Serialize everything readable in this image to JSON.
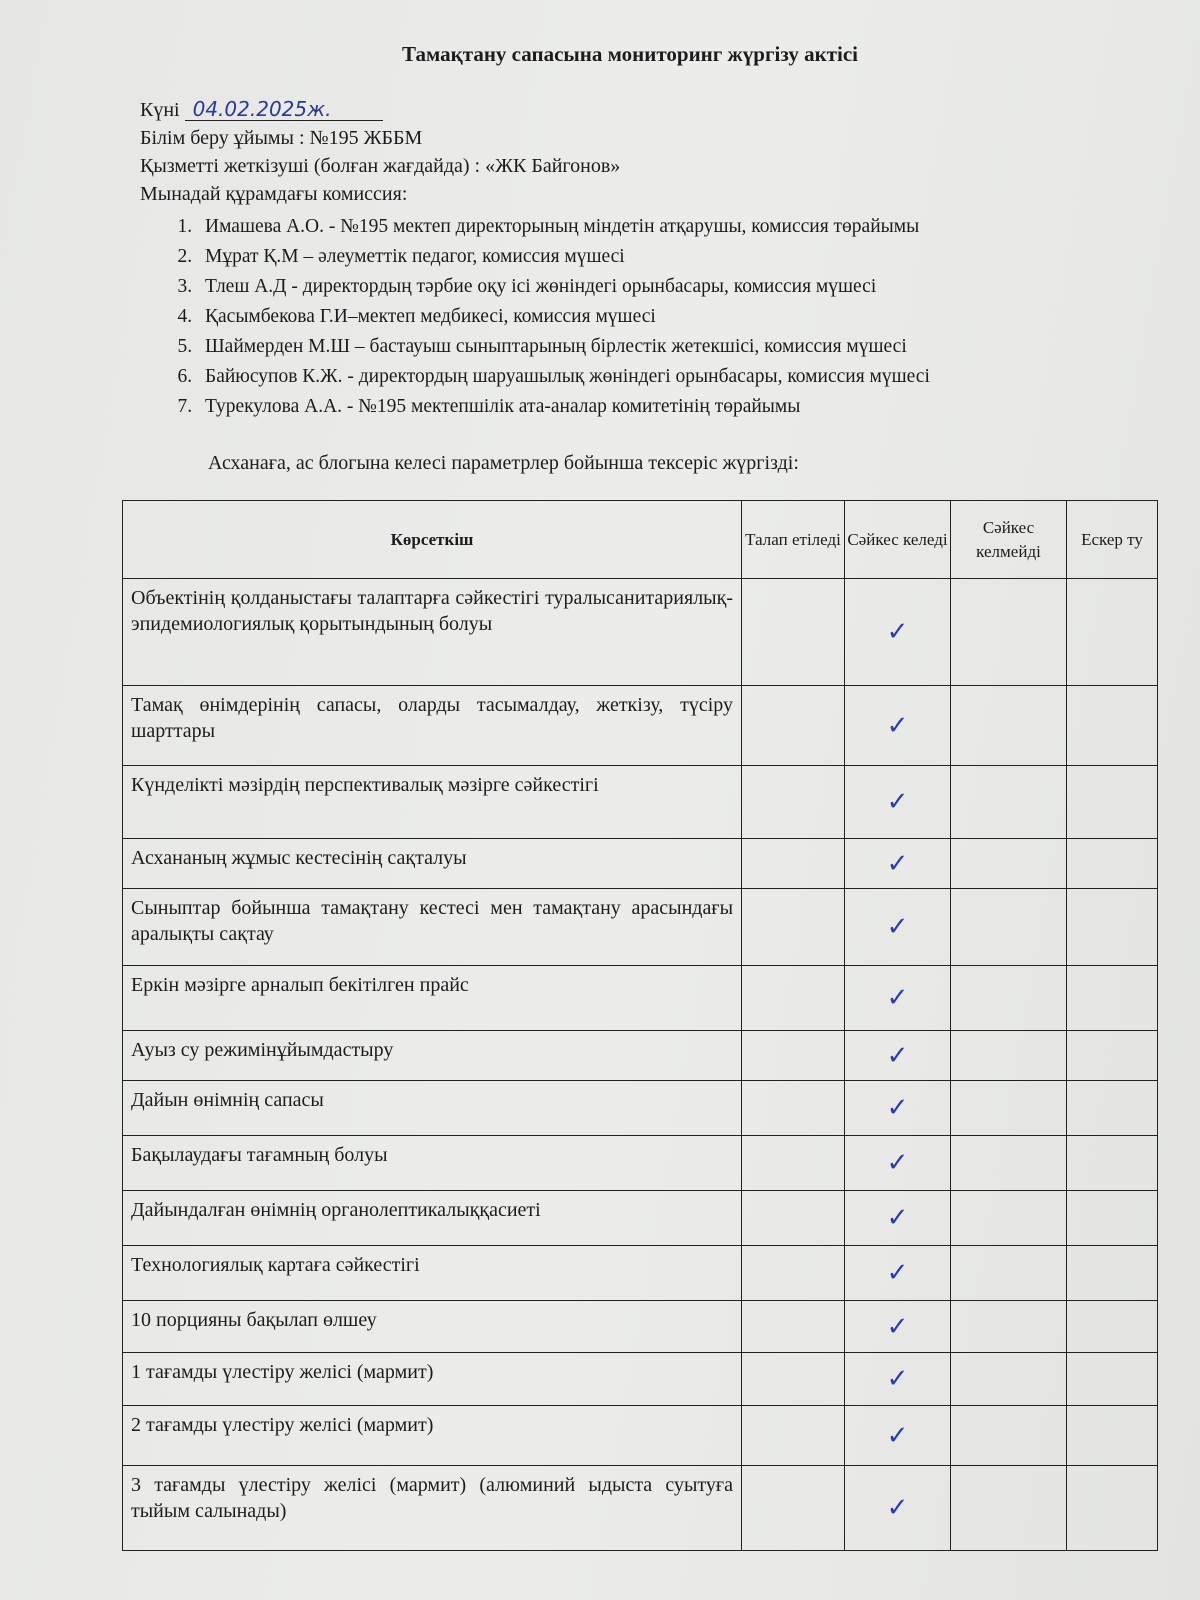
{
  "title": "Тамақтану сапасына мониторинг жүргізу актісі",
  "date_label": "Күні",
  "date_value": "04.02.2025ж.",
  "organization": "Білім беру ұйымы : №195 ЖББМ",
  "supplier": "Қызметті жеткізуші (болған жағдайда) : «ЖК Байгонов»",
  "commission_label": "Мынадай құрамдағы комиссия:",
  "commission": [
    "Имашева А.О. - №195 мектеп директорының міндетін атқарушы, комиссия төрайымы",
    "Мұрат Қ.М – әлеуметтік педагог, комиссия мүшесі",
    "Тлеш А.Д - директордың тәрбие оқу ісі жөніндегі орынбасары, комиссия мүшесі",
    "Қасымбекова Г.И–мектеп  медбикесі,  комиссия мүшесі",
    "Шаймерден М.Ш – бастауыш сыныптарының бірлестік жетекшісі, комиссия мүшесі",
    "Байюсупов К.Ж. - директордың шаруашылық жөніндегі орынбасары, комиссия мүшесі",
    "Турекулова А.А. - №195 мектепшілік ата-аналар комитетінің төрайымы"
  ],
  "intro": "Асханаға, ас блогына келесі параметрлер бойынша тексеріс жүргізді:",
  "table": {
    "headers": [
      "Көрсеткіш",
      "Талап етіледі",
      "Сәйкес келеді",
      "Сәйкес келмейді",
      "Ескер ту"
    ],
    "check_mark": "✓",
    "rows": [
      {
        "indicator": "Объектінің қолданыстағы талаптарға сәйкестігі туралысанитариялық-эпидемиологиялық қорытындының болуы",
        "complies": true
      },
      {
        "indicator": "Тамақ өнімдерінің сапасы, оларды тасымалдау, жеткізу, түсіру шарттары",
        "complies": true
      },
      {
        "indicator": "Күнделікті мәзірдің перспективалық мәзірге сәйкестігі",
        "complies": true
      },
      {
        "indicator": "Асхананың жұмыс кестесінің сақталуы",
        "complies": true
      },
      {
        "indicator": "Сыныптар бойынша тамақтану кестесі мен тамақтану арасындағы аралықты сақтау",
        "complies": true
      },
      {
        "indicator": "Еркін мәзірге арналып бекітілген прайс",
        "complies": true
      },
      {
        "indicator": "Ауыз су режимінұйымдастыру",
        "complies": true
      },
      {
        "indicator": "Дайын өнімнің сапасы",
        "complies": true
      },
      {
        "indicator": "Бақылаудағы тағамның болуы",
        "complies": true
      },
      {
        "indicator": "Дайындалған өнімнің органолептикалыққасиеті",
        "complies": true
      },
      {
        "indicator": "Технологиялық картаға сәйкестігі",
        "complies": true
      },
      {
        "indicator": "10 порцияны бақылап өлшеу",
        "complies": true
      },
      {
        "indicator": "1 тағамды үлестіру желісі  (мармит)",
        "complies": true
      },
      {
        "indicator": "2 тағамды үлестіру желісі  (мармит)",
        "complies": true
      },
      {
        "indicator": "3 тағамды үлестіру желісі  (мармит) (алюминий ыдыста суытуға тыйым салынады)",
        "complies": true
      }
    ]
  }
}
